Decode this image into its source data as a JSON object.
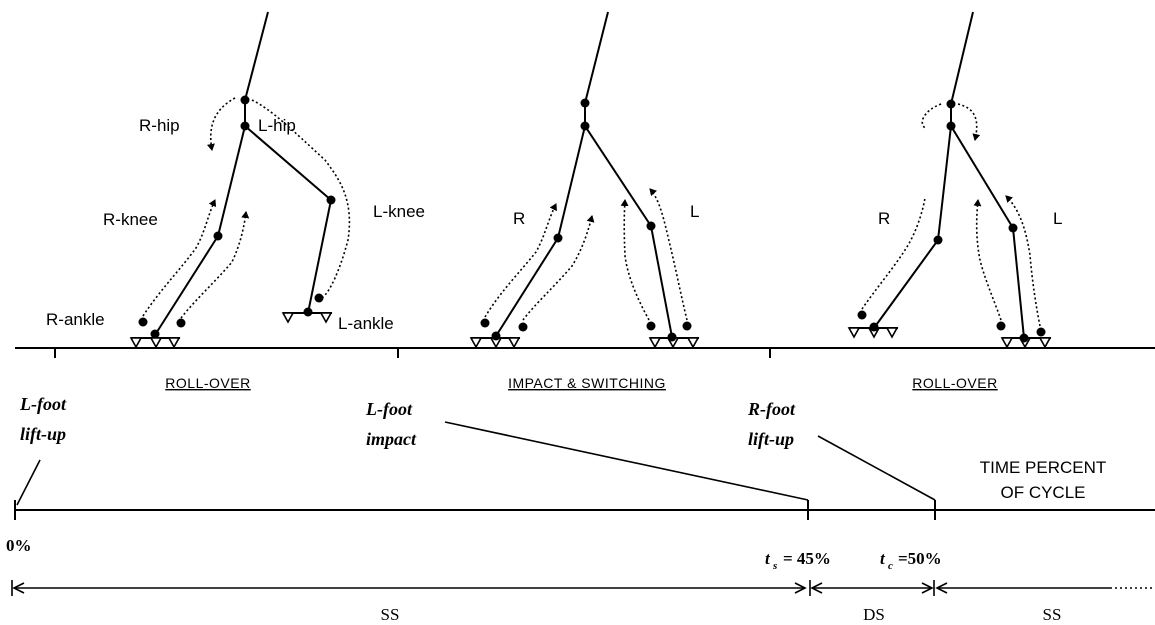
{
  "figures": [
    {
      "phase": "ROLL-OVER",
      "labels": {
        "hip_r": "R-hip",
        "hip_l": "L-hip",
        "knee_r": "R-knee",
        "knee_l": "L-knee",
        "ankle_r": "R-ankle",
        "ankle_l": "L-ankle"
      }
    },
    {
      "phase": "IMPACT & SWITCHING",
      "labels": {
        "right": "R",
        "left": "L"
      }
    },
    {
      "phase": "ROLL-OVER",
      "labels": {
        "right": "R",
        "left": "L"
      }
    }
  ],
  "events": {
    "lfoot_liftup": [
      "L-foot",
      "lift-up"
    ],
    "lfoot_impact": [
      "L-foot",
      "impact"
    ],
    "rfoot_liftup": [
      "R-foot",
      "lift-up"
    ]
  },
  "timeline": {
    "caption": [
      "TIME PERCENT",
      "OF CYCLE"
    ],
    "start": "0%",
    "ts_symbol": "t",
    "ts_sub": "s",
    "ts_value": "= 45%",
    "tc_symbol": "t",
    "tc_sub": "c",
    "tc_value": "=50%"
  },
  "phases": {
    "ss1": "SS",
    "ds": "DS",
    "ss2": "SS"
  }
}
